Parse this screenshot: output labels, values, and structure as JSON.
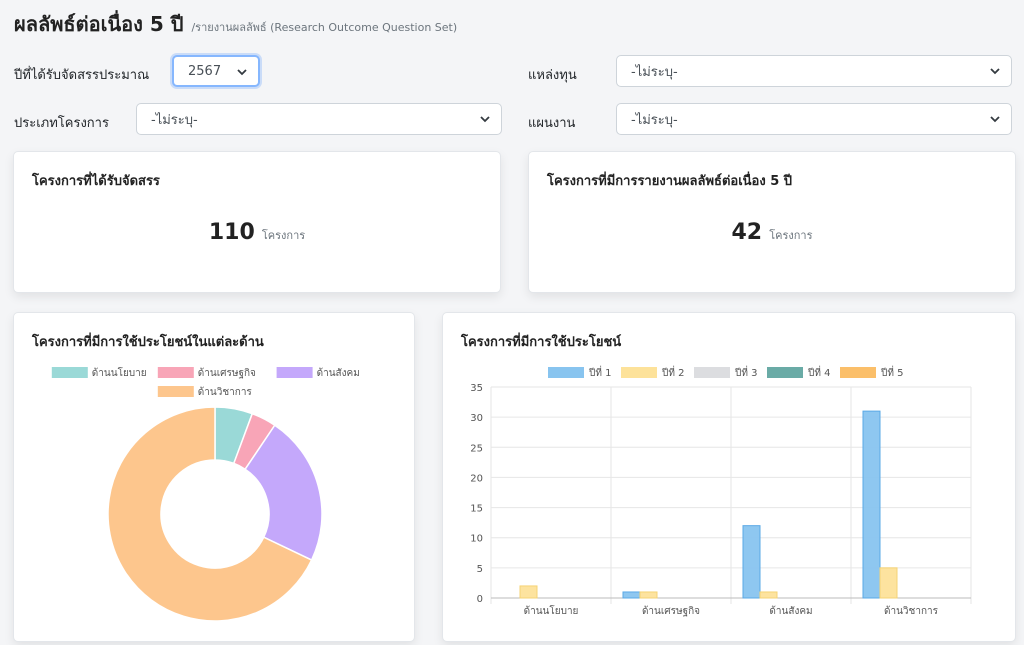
{
  "header": {
    "title": "ผลลัพธ์ต่อเนื่อง 5 ปี",
    "subtitle": "/รายงานผลลัพธ์ (Research Outcome Question Set)"
  },
  "filters": {
    "year_label": "ปีที่ได้รับจัดสรรประมาณ",
    "year_value": "2567",
    "fund_label": "แหล่งทุน",
    "fund_value": "-ไม่ระบุ-",
    "type_label": "ประเภทโครงการ",
    "type_value": "-ไม่ระบุ-",
    "plan_label": "แผนงาน",
    "plan_value": "-ไม่ระบุ-"
  },
  "stats": {
    "allocated_title": "โครงการที่ได้รับจัดสรร",
    "allocated_value": "110",
    "allocated_unit": "โครงการ",
    "reported_title": "โครงการที่มีการรายงานผลลัพธ์ต่อเนื่อง 5 ปี",
    "reported_value": "42",
    "reported_unit": "โครงการ"
  },
  "donut_card": {
    "title": "โครงการที่มีการใช้ประโยชน์ในแต่ละด้าน"
  },
  "bar_card": {
    "title": "โครงการที่มีการใช้ประโยชน์"
  },
  "colors": {
    "policy": "#9ad9d7",
    "economic": "#f8a5b7",
    "social": "#c4a8fb",
    "academic": "#fdc68d",
    "y1": "#88c4ef",
    "y2": "#fde29a",
    "y3": "#dcdde0",
    "y4": "#6aaba6",
    "y5": "#fbbf6a"
  },
  "chart_data": [
    {
      "type": "pie",
      "categories": [
        "ด้านนโยบาย",
        "ด้านเศรษฐกิจ",
        "ด้านสังคม",
        "ด้านวิชาการ"
      ],
      "values": [
        3,
        2,
        12,
        36
      ]
    },
    {
      "type": "bar",
      "categories": [
        "ด้านนโยบาย",
        "ด้านเศรษฐกิจ",
        "ด้านสังคม",
        "ด้านวิชาการ"
      ],
      "series": [
        {
          "name": "ปีที่ 1",
          "values": [
            0,
            1,
            12,
            31
          ]
        },
        {
          "name": "ปีที่ 2",
          "values": [
            2,
            1,
            1,
            5
          ]
        },
        {
          "name": "ปีที่ 3",
          "values": [
            0,
            0,
            0,
            0
          ]
        },
        {
          "name": "ปีที่ 4",
          "values": [
            0,
            0,
            0,
            0
          ]
        },
        {
          "name": "ปีที่ 5",
          "values": [
            0,
            0,
            0,
            0
          ]
        }
      ],
      "ylim": [
        0,
        35
      ],
      "yticks": [
        0,
        5,
        10,
        15,
        20,
        25,
        30,
        35
      ],
      "grid": true,
      "legend_position": "top"
    }
  ]
}
